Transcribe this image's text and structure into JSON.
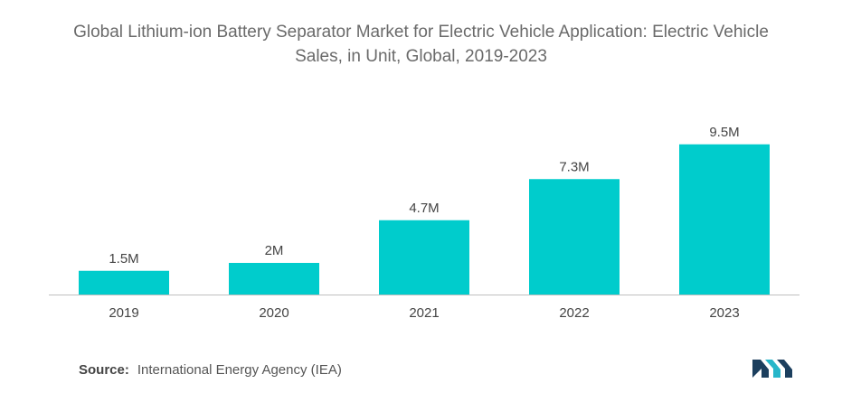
{
  "title_line1": "Global Lithium-ion Battery Separator Market for Electric Vehicle Application: Electric Vehicle",
  "title_line2": "Sales, in Unit, Global, 2019-2023",
  "source_label": "Source:",
  "source_text": "International Energy Agency (IEA)",
  "colors": {
    "bar": "#00CCCC",
    "axis": "#bfbfbf",
    "text": "#444444",
    "logo_dark": "#1c3f5e",
    "logo_light": "#27b6c9"
  },
  "chart_data": {
    "type": "bar",
    "title": "Global Lithium-ion Battery Separator Market for Electric Vehicle Application: Electric Vehicle Sales, in Unit, Global, 2019-2023",
    "categories": [
      "2019",
      "2020",
      "2021",
      "2022",
      "2023"
    ],
    "values": [
      1.5,
      2,
      4.7,
      7.3,
      9.5
    ],
    "data_labels": [
      "1.5M",
      "2M",
      "4.7M",
      "7.3M",
      "9.5M"
    ],
    "unit": "M",
    "ylim": [
      0,
      10
    ],
    "grid": false,
    "legend": "none"
  }
}
